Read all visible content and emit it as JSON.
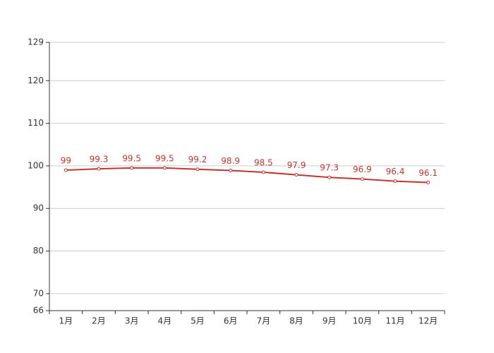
{
  "chart_data": {
    "type": "line",
    "categories": [
      "1月",
      "2月",
      "3月",
      "4月",
      "5月",
      "6月",
      "7月",
      "8月",
      "9月",
      "10月",
      "11月",
      "12月"
    ],
    "series": [
      {
        "color": "#c23531",
        "values": [
          99,
          99.3,
          99.5,
          99.5,
          99.2,
          98.9,
          98.5,
          97.9,
          97.3,
          96.9,
          96.4,
          96.1
        ]
      }
    ],
    "ylim": [
      66,
      129
    ],
    "yticks": [
      66,
      70,
      80,
      90,
      100,
      110,
      120,
      129
    ],
    "grid": true
  }
}
